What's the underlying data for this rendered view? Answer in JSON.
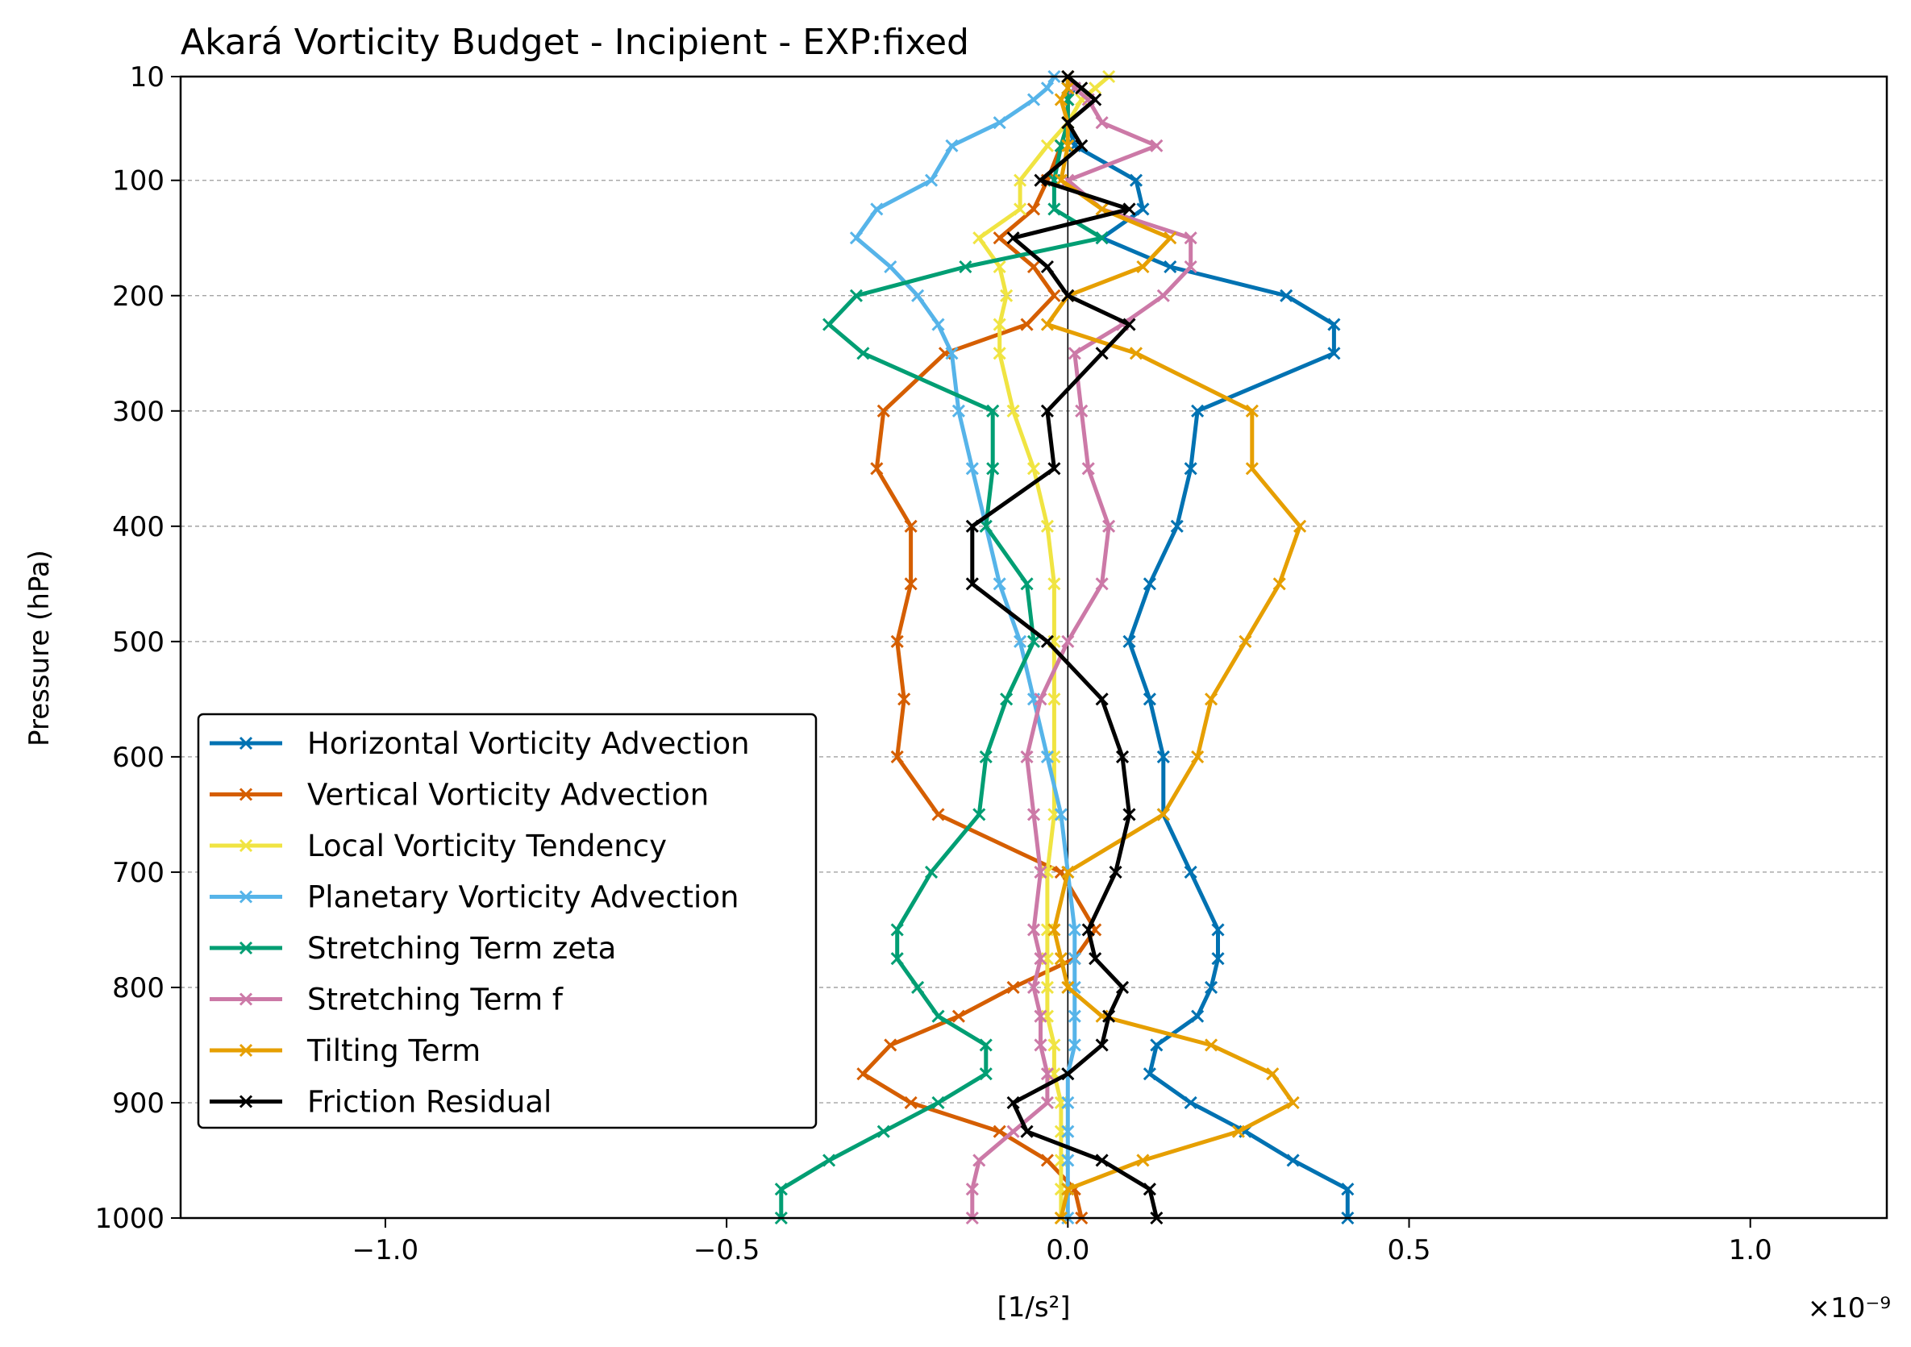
{
  "chart_data": {
    "type": "line",
    "title": "Akará Vorticity Budget - Incipient - EXP:fixed",
    "xlabel": "[1/s²]",
    "ylabel": "Pressure (hPa)",
    "x_offset_label": "×10⁻⁹",
    "xlim": [
      -1.3,
      1.2
    ],
    "ylim": [
      1000,
      10
    ],
    "y_inverted": true,
    "xticks": [
      -1.0,
      -0.5,
      0.0,
      0.5,
      1.0
    ],
    "xtick_labels": [
      "−1.0",
      "−0.5",
      "0.0",
      "0.5",
      "1.0"
    ],
    "yticks": [
      10,
      100,
      200,
      300,
      400,
      500,
      600,
      700,
      800,
      900,
      1000
    ],
    "ytick_labels": [
      "10",
      "100",
      "200",
      "300",
      "400",
      "500",
      "600",
      "700",
      "800",
      "900",
      "1000"
    ],
    "grid": "horizontal dashed",
    "zero_line": true,
    "legend_position": "lower-left",
    "levels": [
      10,
      20,
      30,
      50,
      70,
      100,
      125,
      150,
      175,
      200,
      225,
      250,
      300,
      350,
      400,
      450,
      500,
      550,
      600,
      650,
      700,
      750,
      775,
      800,
      825,
      850,
      875,
      900,
      925,
      950,
      975,
      1000
    ],
    "series": [
      {
        "name": "Horizontal Vorticity Advection",
        "color": "#0072B2",
        "values": [
          0.0,
          0.01,
          0.0,
          0.0,
          0.01,
          0.1,
          0.11,
          0.05,
          0.15,
          0.32,
          0.39,
          0.39,
          0.19,
          0.18,
          0.16,
          0.12,
          0.09,
          0.12,
          0.14,
          0.14,
          0.18,
          0.22,
          0.22,
          0.21,
          0.19,
          0.13,
          0.12,
          0.18,
          0.26,
          0.33,
          0.41,
          0.41
        ]
      },
      {
        "name": "Vertical Vorticity Advection",
        "color": "#D55E00",
        "values": [
          0.0,
          0.0,
          0.0,
          0.0,
          -0.01,
          -0.03,
          -0.05,
          -0.1,
          -0.05,
          -0.02,
          -0.06,
          -0.18,
          -0.27,
          -0.28,
          -0.23,
          -0.23,
          -0.25,
          -0.24,
          -0.25,
          -0.19,
          -0.01,
          0.04,
          0.01,
          -0.08,
          -0.16,
          -0.26,
          -0.3,
          -0.23,
          -0.1,
          -0.03,
          0.01,
          0.02
        ]
      },
      {
        "name": "Local Vorticity Tendency",
        "color": "#F0E442",
        "values": [
          0.06,
          0.04,
          0.02,
          0.0,
          -0.03,
          -0.07,
          -0.07,
          -0.13,
          -0.1,
          -0.09,
          -0.1,
          -0.1,
          -0.08,
          -0.05,
          -0.03,
          -0.02,
          -0.02,
          -0.02,
          -0.02,
          -0.02,
          -0.03,
          -0.03,
          -0.03,
          -0.03,
          -0.03,
          -0.02,
          -0.02,
          -0.01,
          -0.01,
          -0.01,
          -0.01,
          -0.01
        ]
      },
      {
        "name": "Planetary Vorticity Advection",
        "color": "#56B4E9",
        "values": [
          -0.02,
          -0.03,
          -0.05,
          -0.1,
          -0.17,
          -0.2,
          -0.28,
          -0.31,
          -0.26,
          -0.22,
          -0.19,
          -0.17,
          -0.16,
          -0.14,
          -0.12,
          -0.1,
          -0.07,
          -0.05,
          -0.03,
          -0.01,
          0.0,
          0.01,
          0.01,
          0.01,
          0.01,
          0.01,
          0.0,
          0.0,
          0.0,
          0.0,
          0.0,
          0.0
        ]
      },
      {
        "name": "Stretching Term zeta",
        "color": "#009E73",
        "values": [
          0.0,
          0.0,
          0.0,
          0.0,
          -0.01,
          -0.02,
          -0.02,
          0.05,
          -0.15,
          -0.31,
          -0.35,
          -0.3,
          -0.11,
          -0.11,
          -0.12,
          -0.06,
          -0.05,
          -0.09,
          -0.12,
          -0.13,
          -0.2,
          -0.25,
          -0.25,
          -0.22,
          -0.19,
          -0.12,
          -0.12,
          -0.19,
          -0.27,
          -0.35,
          -0.42,
          -0.42
        ]
      },
      {
        "name": "Stretching Term f",
        "color": "#CC79A7",
        "values": [
          0.0,
          0.01,
          0.03,
          0.05,
          0.13,
          0.0,
          0.05,
          0.18,
          0.18,
          0.14,
          0.08,
          0.01,
          0.02,
          0.03,
          0.06,
          0.05,
          0.0,
          -0.04,
          -0.06,
          -0.05,
          -0.04,
          -0.05,
          -0.04,
          -0.05,
          -0.04,
          -0.04,
          -0.03,
          -0.03,
          -0.08,
          -0.13,
          -0.14,
          -0.14
        ]
      },
      {
        "name": "Tilting Term",
        "color": "#E69F00",
        "values": [
          0.0,
          0.0,
          -0.01,
          0.0,
          0.0,
          -0.01,
          0.05,
          0.15,
          0.11,
          0.0,
          -0.03,
          0.1,
          0.27,
          0.27,
          0.34,
          0.31,
          0.26,
          0.21,
          0.19,
          0.14,
          0.0,
          -0.02,
          -0.01,
          0.0,
          0.05,
          0.21,
          0.3,
          0.33,
          0.25,
          0.11,
          0.0,
          -0.01
        ]
      },
      {
        "name": "Friction Residual",
        "color": "#000000",
        "values": [
          0.0,
          0.02,
          0.04,
          0.0,
          0.02,
          -0.04,
          0.09,
          -0.08,
          -0.03,
          0.0,
          0.09,
          0.05,
          -0.03,
          -0.02,
          -0.14,
          -0.14,
          -0.03,
          0.05,
          0.08,
          0.09,
          0.07,
          0.03,
          0.04,
          0.08,
          0.06,
          0.05,
          0.0,
          -0.08,
          -0.06,
          0.05,
          0.12,
          0.13
        ]
      }
    ]
  }
}
